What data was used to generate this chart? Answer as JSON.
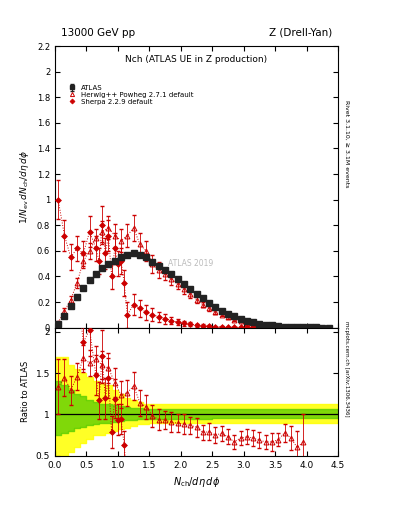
{
  "title_top": "13000 GeV pp",
  "title_right": "Z (Drell-Yan)",
  "plot_title": "Nch (ATLAS UE in Z production)",
  "ylabel_main": "1/N_{ev} dN_{ch}/d\\eta d\\phi",
  "ylabel_ratio": "Ratio to ATLAS",
  "xlabel": "N_{ch}/d\\eta d\\phi",
  "right_label_top": "Rivet 3.1.10, ≥ 3.1M events",
  "right_label_bot": "mcplots.cern.ch [arXiv:1306.3436]",
  "watermark": "ATLAS 2019",
  "ylim_main": [
    0.0,
    2.2
  ],
  "ylim_ratio": [
    0.5,
    2.05
  ],
  "xlim": [
    0.0,
    4.5
  ],
  "atlas_x": [
    0.05,
    0.15,
    0.25,
    0.35,
    0.45,
    0.55,
    0.65,
    0.75,
    0.85,
    0.95,
    1.05,
    1.15,
    1.25,
    1.35,
    1.45,
    1.55,
    1.65,
    1.75,
    1.85,
    1.95,
    2.05,
    2.15,
    2.25,
    2.35,
    2.45,
    2.55,
    2.65,
    2.75,
    2.85,
    2.95,
    3.05,
    3.15,
    3.25,
    3.35,
    3.45,
    3.55,
    3.65,
    3.75,
    3.85,
    3.95,
    4.05,
    4.15,
    4.25,
    4.35
  ],
  "atlas_y": [
    0.03,
    0.09,
    0.17,
    0.24,
    0.31,
    0.37,
    0.42,
    0.47,
    0.5,
    0.52,
    0.55,
    0.57,
    0.58,
    0.57,
    0.55,
    0.51,
    0.48,
    0.45,
    0.42,
    0.38,
    0.34,
    0.3,
    0.26,
    0.23,
    0.19,
    0.16,
    0.13,
    0.11,
    0.09,
    0.07,
    0.055,
    0.042,
    0.032,
    0.024,
    0.018,
    0.013,
    0.009,
    0.007,
    0.005,
    0.003,
    0.002,
    0.0015,
    0.001,
    0.0007
  ],
  "atlas_yerr": [
    0.003,
    0.005,
    0.007,
    0.008,
    0.009,
    0.009,
    0.009,
    0.009,
    0.009,
    0.009,
    0.009,
    0.009,
    0.009,
    0.009,
    0.009,
    0.009,
    0.009,
    0.009,
    0.008,
    0.008,
    0.007,
    0.007,
    0.006,
    0.005,
    0.005,
    0.004,
    0.004,
    0.003,
    0.003,
    0.002,
    0.002,
    0.002,
    0.001,
    0.001,
    0.001,
    0.001,
    0.001,
    0.001,
    0.001,
    0.001,
    0.001,
    0.001,
    0.001,
    0.001
  ],
  "herwig_x": [
    0.05,
    0.15,
    0.25,
    0.35,
    0.45,
    0.55,
    0.65,
    0.75,
    0.85,
    0.95,
    1.05,
    1.15,
    1.25,
    1.35,
    1.45,
    1.55,
    1.65,
    1.75,
    1.85,
    1.95,
    2.05,
    2.15,
    2.25,
    2.35,
    2.45,
    2.55,
    2.65,
    2.75,
    2.85,
    2.95,
    3.05,
    3.15,
    3.25,
    3.35,
    3.45,
    3.55,
    3.65,
    3.75,
    3.85,
    3.95,
    4.05,
    4.15,
    4.25,
    4.35
  ],
  "herwig_y": [
    0.04,
    0.13,
    0.22,
    0.35,
    0.52,
    0.6,
    0.7,
    0.75,
    0.78,
    0.72,
    0.68,
    0.72,
    0.78,
    0.65,
    0.6,
    0.5,
    0.45,
    0.42,
    0.38,
    0.34,
    0.3,
    0.26,
    0.22,
    0.18,
    0.15,
    0.12,
    0.1,
    0.08,
    0.06,
    0.05,
    0.04,
    0.03,
    0.022,
    0.016,
    0.012,
    0.009,
    0.007,
    0.005,
    0.003,
    0.002,
    0.002,
    0.001,
    0.001,
    0.001
  ],
  "herwig_yerr": [
    0.01,
    0.02,
    0.03,
    0.04,
    0.05,
    0.06,
    0.07,
    0.08,
    0.09,
    0.09,
    0.09,
    0.09,
    0.1,
    0.09,
    0.08,
    0.07,
    0.06,
    0.05,
    0.05,
    0.04,
    0.04,
    0.03,
    0.03,
    0.02,
    0.02,
    0.015,
    0.012,
    0.01,
    0.008,
    0.006,
    0.005,
    0.004,
    0.003,
    0.002,
    0.002,
    0.001,
    0.001,
    0.001,
    0.001,
    0.001,
    0.001,
    0.001,
    0.001,
    0.001
  ],
  "sherpa_x": [
    0.05,
    0.15,
    0.25,
    0.35,
    0.45,
    0.55,
    0.65,
    0.7,
    0.75,
    0.8,
    0.85,
    0.9,
    0.95,
    1.0,
    1.05,
    1.1,
    1.15,
    1.25,
    1.35,
    1.45,
    1.55,
    1.65,
    1.75,
    1.85,
    1.95,
    2.05,
    2.15,
    2.25,
    2.35,
    2.45,
    2.55,
    2.65,
    2.75,
    2.85,
    2.95,
    3.05,
    3.15,
    3.25,
    3.35,
    3.45,
    3.55,
    3.65,
    3.75,
    3.85
  ],
  "sherpa_y": [
    1.0,
    0.72,
    0.55,
    0.62,
    0.58,
    0.75,
    0.62,
    0.52,
    0.8,
    0.58,
    0.72,
    0.4,
    0.62,
    0.5,
    0.52,
    0.35,
    0.1,
    0.18,
    0.15,
    0.12,
    0.1,
    0.085,
    0.07,
    0.056,
    0.044,
    0.034,
    0.026,
    0.02,
    0.015,
    0.012,
    0.009,
    0.007,
    0.005,
    0.004,
    0.003,
    0.002,
    0.002,
    0.001,
    0.001,
    0.001,
    0.001,
    0.001,
    0.001,
    0.001
  ],
  "sherpa_yerr": [
    0.15,
    0.12,
    0.1,
    0.1,
    0.1,
    0.12,
    0.1,
    0.1,
    0.15,
    0.12,
    0.12,
    0.1,
    0.12,
    0.1,
    0.1,
    0.1,
    0.1,
    0.08,
    0.07,
    0.06,
    0.05,
    0.04,
    0.04,
    0.03,
    0.025,
    0.02,
    0.016,
    0.012,
    0.01,
    0.008,
    0.006,
    0.005,
    0.004,
    0.003,
    0.002,
    0.002,
    0.001,
    0.001,
    0.001,
    0.001,
    0.001,
    0.001,
    0.001,
    0.001
  ],
  "atlas_color": "#222222",
  "herwig_color": "#cc0000",
  "sherpa_color": "#cc0000",
  "legend_entries": [
    "ATLAS",
    "Herwig++ Powheg 2.7.1 default",
    "Sherpa 2.2.9 default"
  ],
  "ratio_band_x": [
    0.0,
    0.1,
    0.2,
    0.3,
    0.4,
    0.5,
    0.6,
    0.7,
    0.8,
    0.9,
    1.0,
    1.1,
    1.2,
    1.3,
    1.4,
    1.5,
    2.0,
    2.5,
    3.0,
    3.5,
    4.0,
    4.5
  ],
  "ratio_yellow_lo": [
    0.5,
    0.5,
    0.55,
    0.6,
    0.65,
    0.7,
    0.75,
    0.75,
    0.78,
    0.8,
    0.82,
    0.84,
    0.86,
    0.88,
    0.88,
    0.9,
    0.9,
    0.9,
    0.9,
    0.9,
    0.9,
    0.9
  ],
  "ratio_yellow_hi": [
    1.7,
    1.7,
    1.6,
    1.55,
    1.5,
    1.45,
    1.4,
    1.38,
    1.35,
    1.3,
    1.25,
    1.2,
    1.18,
    1.15,
    1.13,
    1.12,
    1.12,
    1.12,
    1.12,
    1.12,
    1.12,
    1.12
  ],
  "ratio_green_lo": [
    0.75,
    0.78,
    0.8,
    0.83,
    0.85,
    0.87,
    0.88,
    0.89,
    0.9,
    0.91,
    0.92,
    0.93,
    0.93,
    0.94,
    0.94,
    0.95,
    0.95,
    0.96,
    0.96,
    0.96,
    0.96,
    0.96
  ],
  "ratio_green_hi": [
    1.4,
    1.35,
    1.3,
    1.25,
    1.22,
    1.18,
    1.15,
    1.13,
    1.12,
    1.11,
    1.1,
    1.09,
    1.08,
    1.08,
    1.07,
    1.07,
    1.07,
    1.06,
    1.06,
    1.06,
    1.06,
    1.06
  ]
}
